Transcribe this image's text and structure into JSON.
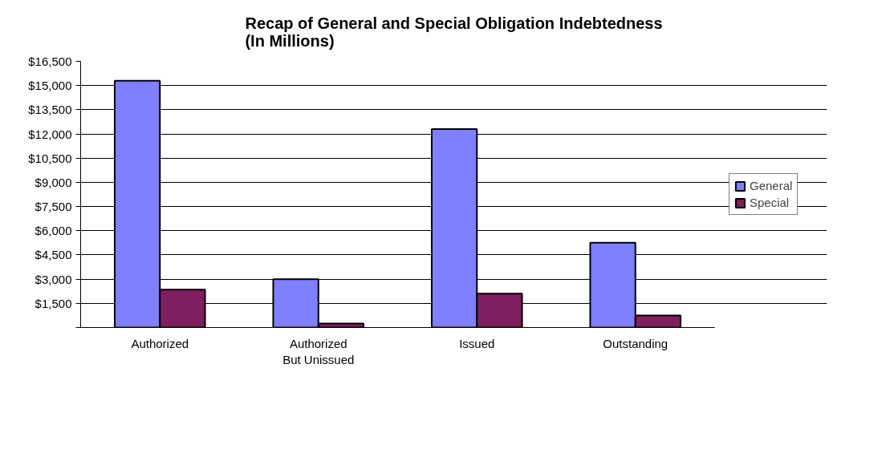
{
  "chart_data": {
    "type": "bar",
    "title": "Recap of General and Special Obligation Indebtedness\n(In Millions)",
    "categories": [
      "Authorized",
      "Authorized\nBut Unissued",
      "Issued",
      "Outstanding"
    ],
    "series": [
      {
        "name": "General",
        "color": "#8080ff",
        "values": [
          15300,
          3000,
          12300,
          5250
        ]
      },
      {
        "name": "Special",
        "color": "#7f1f5f",
        "values": [
          2350,
          250,
          2100,
          750
        ]
      }
    ],
    "ylim": [
      0,
      16500
    ],
    "yticks": [
      {
        "value": 0,
        "label": null
      },
      {
        "value": 1500,
        "label": "$1,500"
      },
      {
        "value": 3000,
        "label": "$3,000"
      },
      {
        "value": 4500,
        "label": "$4,500"
      },
      {
        "value": 6000,
        "label": "$6,000"
      },
      {
        "value": 7500,
        "label": "$7,500"
      },
      {
        "value": 9000,
        "label": "$9,000"
      },
      {
        "value": 10500,
        "label": "$10,500"
      },
      {
        "value": 12000,
        "label": "$12,000"
      },
      {
        "value": 13500,
        "label": "$13,500"
      },
      {
        "value": 15000,
        "label": "$15,000"
      },
      {
        "value": 16500,
        "label": "$16,500"
      }
    ],
    "grid": "y",
    "legend": "right"
  }
}
